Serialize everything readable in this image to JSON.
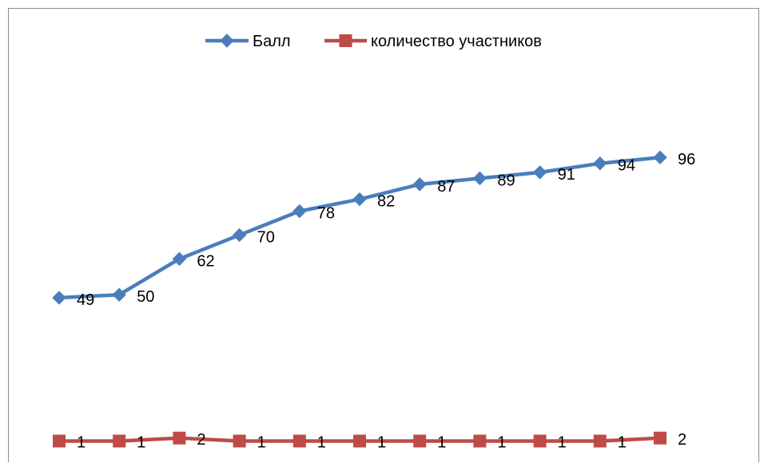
{
  "chart_data": {
    "type": "line",
    "categories": [
      "",
      "",
      "",
      "",
      "",
      "",
      "",
      "",
      "",
      "",
      ""
    ],
    "series": [
      {
        "name": "Балл",
        "values": [
          49,
          50,
          62,
          70,
          78,
          82,
          87,
          89,
          91,
          94,
          96
        ],
        "color": "#4a7ebb",
        "marker": "diamond"
      },
      {
        "name": "количество участников",
        "values": [
          1,
          1,
          2,
          1,
          1,
          1,
          1,
          1,
          1,
          1,
          2
        ],
        "color": "#be4b48",
        "marker": "square"
      }
    ],
    "legend": "top",
    "grid": false,
    "data_labels": true
  }
}
